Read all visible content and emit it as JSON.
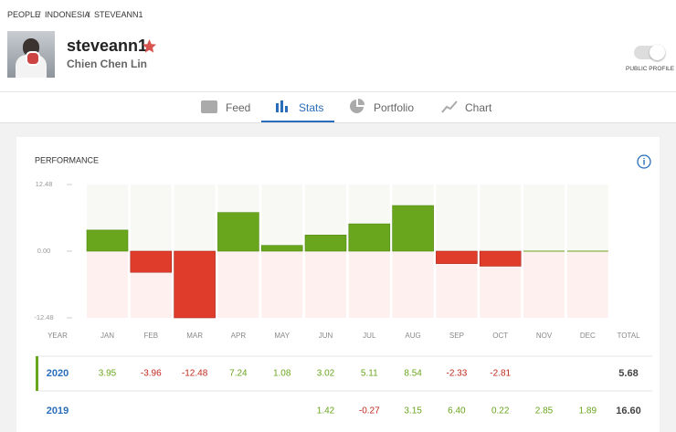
{
  "breadcrumb": [
    "PEOPLE",
    "INDONESIA",
    "STEVEANN1"
  ],
  "profile": {
    "username": "steveann1",
    "full_name": "Chien Chen Lin",
    "toggle_label": "PUBLIC PROFILE"
  },
  "tabs": [
    "Feed",
    "Stats",
    "Portfolio",
    "Chart"
  ],
  "chart_data": {
    "type": "bar",
    "title": "PERFORMANCE",
    "categories": [
      "JAN",
      "FEB",
      "MAR",
      "APR",
      "MAY",
      "JUN",
      "JUL",
      "AUG",
      "SEP",
      "OCT",
      "NOV",
      "DEC"
    ],
    "values": [
      3.95,
      -3.96,
      -12.48,
      7.24,
      1.08,
      3.02,
      5.11,
      8.54,
      -2.33,
      -2.81,
      null,
      null
    ],
    "positive_color": "#6aa51e",
    "negative_color": "#e03c2c",
    "ylim": [
      -12.48,
      12.48
    ],
    "yticks": [
      -12.48,
      {
        "value": 0,
        "label": "0.00"
      },
      12.48
    ]
  },
  "table": {
    "header": {
      "year": "YEAR",
      "total": "TOTAL"
    },
    "rows": [
      {
        "year": "2020",
        "total": "5.68"
      },
      {
        "year": "2019",
        "cells": [
          null,
          null,
          null,
          null,
          null,
          "1.42",
          "-0.27",
          "3.15",
          "6.40",
          "0.22",
          "2.85",
          "1.89"
        ],
        "total": "16.60"
      }
    ]
  }
}
